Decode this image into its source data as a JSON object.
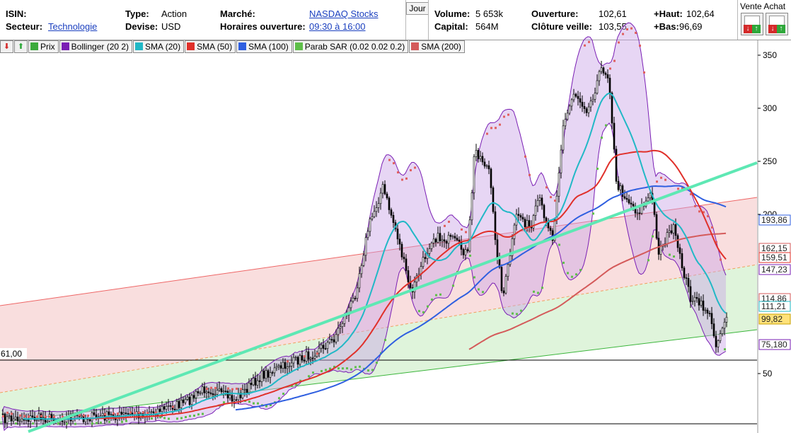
{
  "header": {
    "isin_label": "ISIN:",
    "secteur_label": "Secteur:",
    "secteur_value": "Technologie",
    "type_label": "Type:",
    "type_value": "Action",
    "devise_label": "Devise:",
    "devise_value": "USD",
    "marche_label": "Marché:",
    "marche_value": "NASDAQ Stocks",
    "horaires_label": "Horaires ouverture:",
    "horaires_value": "09:30 à 16:00",
    "period_button": "Jour",
    "volume_label": "Volume:",
    "volume_value": "5 653k",
    "capital_label": "Capital:",
    "capital_value": "564M",
    "ouverture_label": "Ouverture:",
    "ouverture_value": "102,61",
    "cloture_label": "Clôture veille:",
    "cloture_value": "103,55",
    "haut_label": "+Haut:",
    "haut_value": "102,64",
    "bas_label": "+Bas:",
    "bas_value": "96,69",
    "vente_achat_label": "Vente Achat"
  },
  "legend": {
    "items": [
      {
        "label": "Prix",
        "color": "#3caa3c"
      },
      {
        "label": "Bollinger (20 2)",
        "color": "#7a1fb4"
      },
      {
        "label": "SMA (20)",
        "color": "#21b8c6"
      },
      {
        "label": "SMA (50)",
        "color": "#e0302a"
      },
      {
        "label": "SMA (100)",
        "color": "#2f5fe0"
      },
      {
        "label": "Parab SAR (0.02 0.02 0.2)",
        "color": "#5fbf4a"
      },
      {
        "label": "SMA (200)",
        "color": "#d45a5a"
      }
    ]
  },
  "axis": {
    "ticks": [
      "350",
      "300",
      "250",
      "200",
      "50"
    ],
    "tick_values": [
      350,
      300,
      250,
      200,
      50
    ]
  },
  "price_labels": [
    {
      "text": "193,86",
      "border": "#2f5fe0",
      "bg": "#ffffff"
    },
    {
      "text": "162,15",
      "border": "#d45a5a",
      "bg": "#ffffff"
    },
    {
      "text": "159,51",
      "border": "#e0302a",
      "bg": "#ffffff"
    },
    {
      "text": "147,23",
      "border": "#7a1fb4",
      "bg": "#ffffff"
    },
    {
      "text": "114,86",
      "border": "#d45a5a",
      "bg": "#ffffff"
    },
    {
      "text": "111,21",
      "border": "#21b8c6",
      "bg": "#ffffff"
    },
    {
      "text": "99,82",
      "border": "#c8a000",
      "bg": "#ffe27a"
    },
    {
      "text": "75,180",
      "border": "#7a1fb4",
      "bg": "#ffffff"
    }
  ],
  "support_label": "61,00",
  "colors": {
    "bollinger_fill": "#c9a3e6",
    "bollinger_line": "#7a1fb4",
    "sma20": "#21b8c6",
    "sma50": "#e0302a",
    "sma100": "#2f5fe0",
    "sma200": "#d45a5a",
    "sar_up": "#5fbf4a",
    "sar_down": "#e06060",
    "trendline": "#5ee8b4",
    "channel_red": "#f7d3d3",
    "channel_green": "#d9f2d5"
  }
}
